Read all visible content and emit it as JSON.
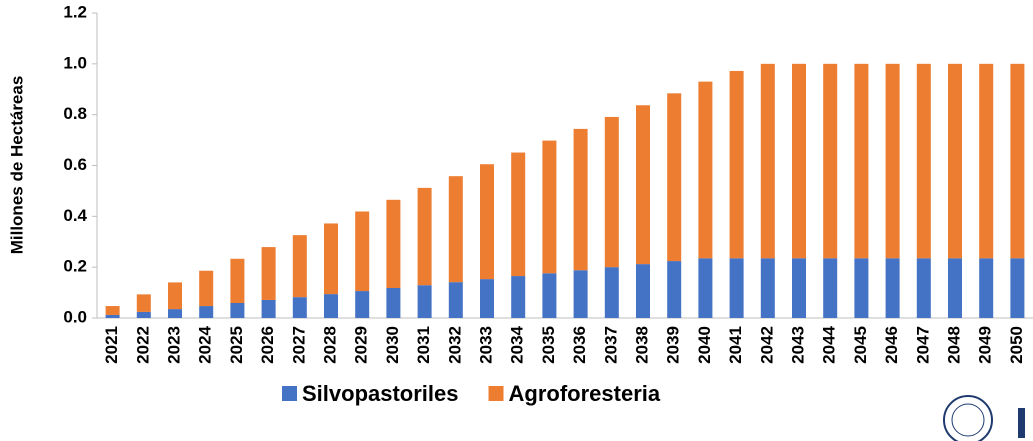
{
  "chart_data": {
    "type": "stacked_bar",
    "ylabel": "Millones de Hectáreas",
    "categories": [
      "2021",
      "2022",
      "2023",
      "2024",
      "2025",
      "2026",
      "2027",
      "2028",
      "2029",
      "2030",
      "2031",
      "2032",
      "2033",
      "2034",
      "2035",
      "2036",
      "2037",
      "2038",
      "2039",
      "2040",
      "2041",
      "2042",
      "2043",
      "2044",
      "2045",
      "2046",
      "2047",
      "2048",
      "2049",
      "2050"
    ],
    "series": [
      {
        "name": "Silvopastoriles",
        "color": "#4472c4",
        "values": [
          0.012,
          0.024,
          0.035,
          0.047,
          0.059,
          0.071,
          0.082,
          0.094,
          0.106,
          0.118,
          0.129,
          0.141,
          0.153,
          0.165,
          0.176,
          0.188,
          0.2,
          0.212,
          0.224,
          0.235,
          0.235,
          0.235,
          0.235,
          0.235,
          0.235,
          0.235,
          0.235,
          0.235,
          0.235,
          0.235
        ]
      },
      {
        "name": "Agroforesteria",
        "color": "#ed7d31",
        "values": [
          0.035,
          0.069,
          0.105,
          0.139,
          0.174,
          0.208,
          0.244,
          0.278,
          0.313,
          0.347,
          0.383,
          0.417,
          0.452,
          0.486,
          0.522,
          0.556,
          0.591,
          0.625,
          0.66,
          0.695,
          0.737,
          0.765,
          0.765,
          0.765,
          0.765,
          0.765,
          0.765,
          0.765,
          0.765,
          0.765
        ]
      }
    ],
    "ylim": [
      0,
      1.2
    ],
    "yticks": [
      {
        "value": 0,
        "label": "0.0"
      },
      0.2,
      0.4,
      0.6,
      0.8,
      {
        "value": 1,
        "label": "1.0"
      },
      1.2
    ],
    "legend": "bottom"
  }
}
